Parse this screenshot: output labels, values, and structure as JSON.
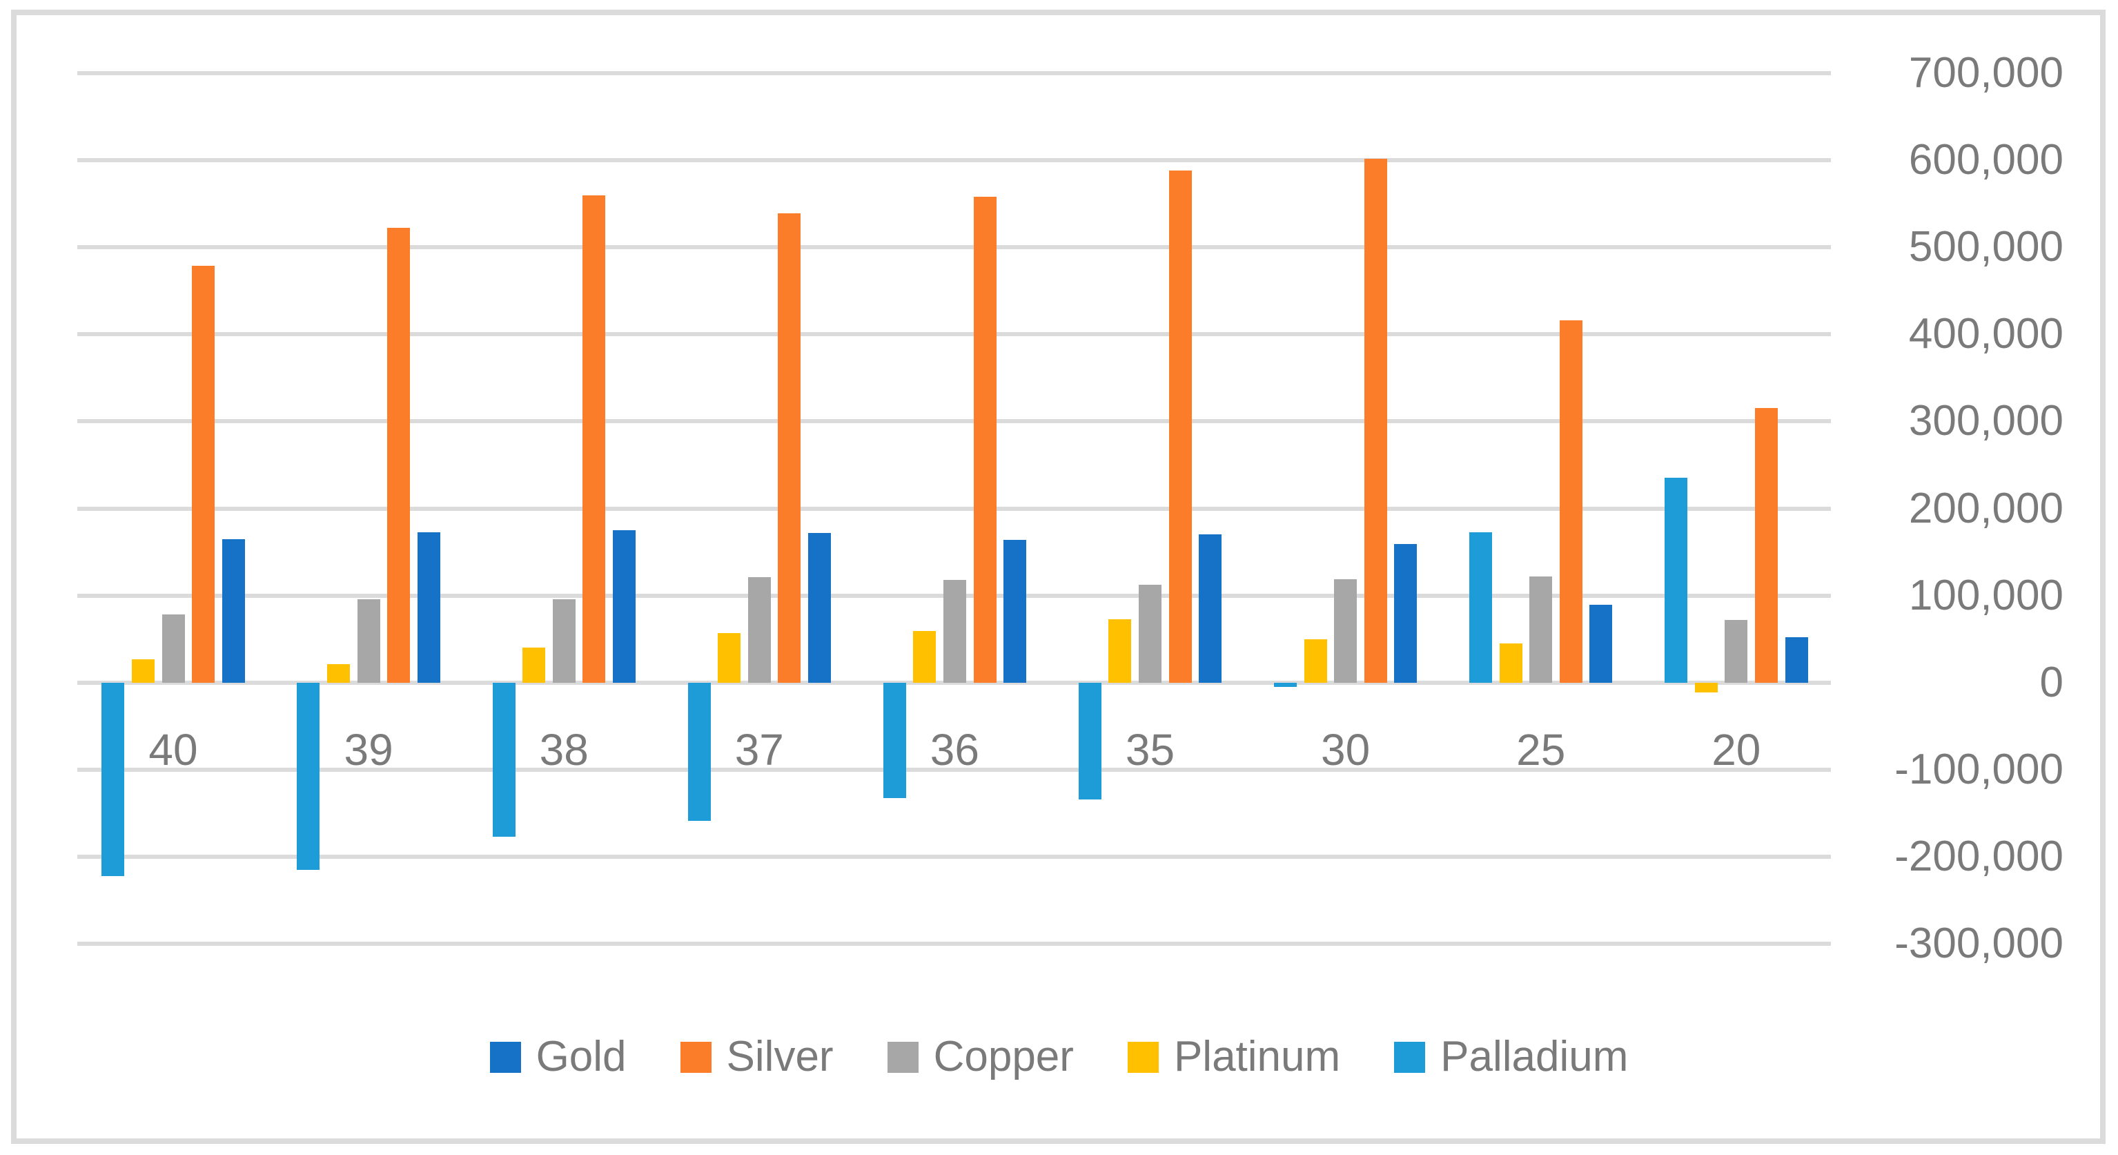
{
  "chart_data": {
    "type": "bar",
    "title": "",
    "categories": [
      "40",
      "39",
      "38",
      "37",
      "36",
      "35",
      "30",
      "25",
      "20"
    ],
    "series": [
      {
        "name": "Gold",
        "color": "#1572C6",
        "values": [
          165000,
          173000,
          175000,
          172000,
          164000,
          170000,
          159000,
          89000,
          52000
        ]
      },
      {
        "name": "Silver",
        "color": "#FB7D2A",
        "values": [
          479000,
          522000,
          560000,
          539000,
          558000,
          588000,
          602000,
          416000,
          315000
        ]
      },
      {
        "name": "Copper",
        "color": "#A7A7A7",
        "values": [
          78000,
          96000,
          96000,
          121000,
          118000,
          112000,
          119000,
          122000,
          72000
        ]
      },
      {
        "name": "Platinum",
        "color": "#FFC000",
        "values": [
          27000,
          21000,
          40000,
          57000,
          59000,
          73000,
          50000,
          45000,
          -11000
        ]
      },
      {
        "name": "Palladium",
        "color": "#1E9CD7",
        "values": [
          -222000,
          -215000,
          -177000,
          -159000,
          -133000,
          -134000,
          -5000,
          173000,
          235000
        ]
      }
    ],
    "bar_plot_order": [
      "Palladium",
      "Platinum",
      "Copper",
      "Silver",
      "Gold"
    ],
    "y_axis": {
      "side": "right",
      "min": -300000,
      "max": 700000,
      "step": 100000,
      "tick_labels": [
        "700,000",
        "600,000",
        "500,000",
        "400,000",
        "300,000",
        "200,000",
        "100,000",
        "0",
        "-100,000",
        "-200,000",
        "-300,000"
      ]
    },
    "legend": {
      "position": "bottom",
      "entries": [
        "Gold",
        "Silver",
        "Copper",
        "Platinum",
        "Palladium"
      ]
    },
    "grid": true,
    "gridline_color": "#DBDBDB",
    "border_color": "#DBDBDB",
    "text_color": "#7A7A7A",
    "background_color": "#FFFFFF"
  }
}
